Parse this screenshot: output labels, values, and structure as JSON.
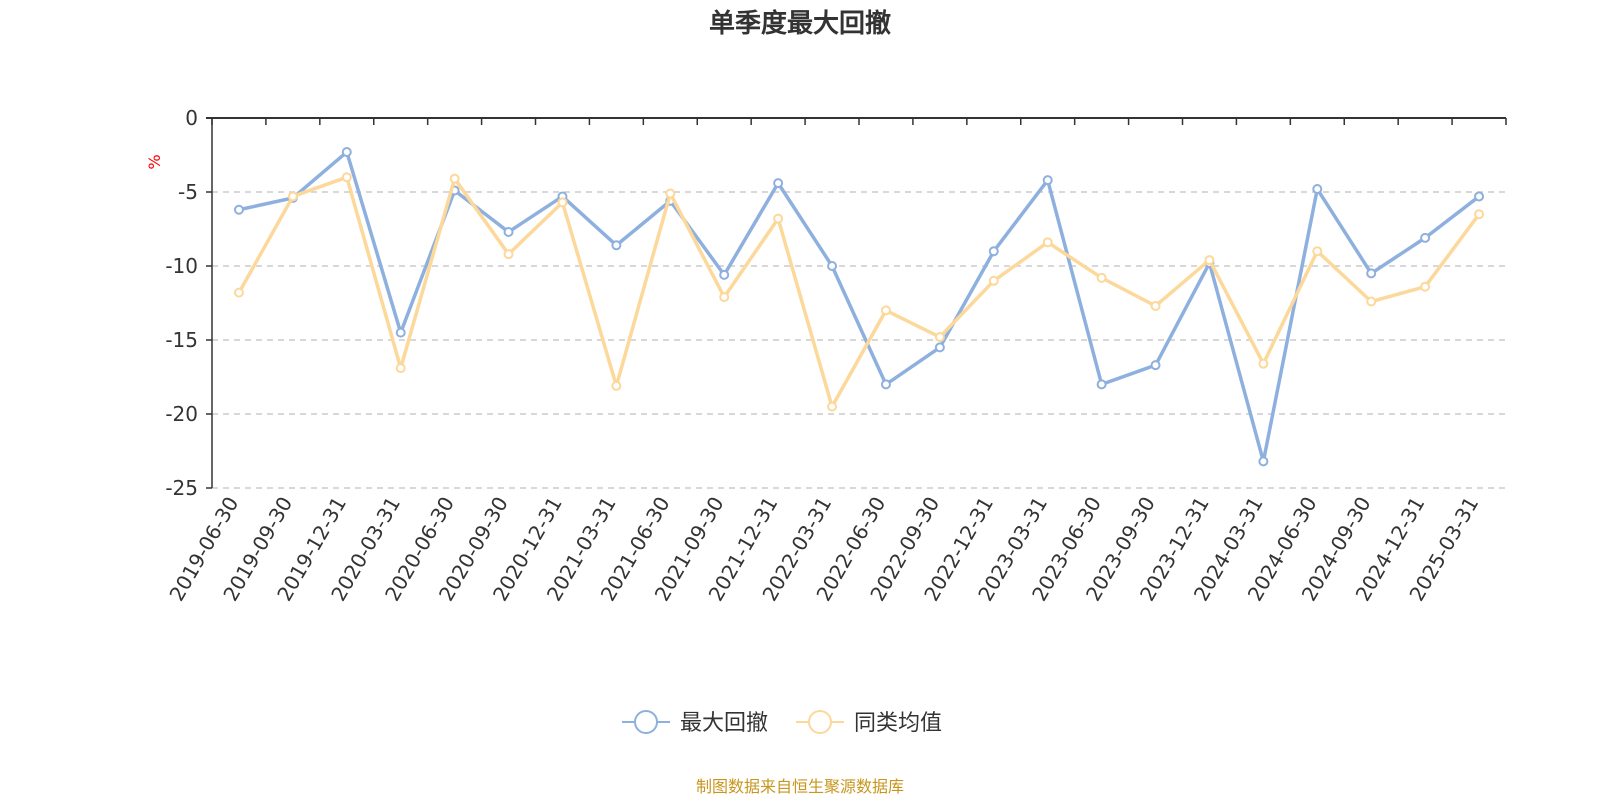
{
  "chart_data": {
    "type": "line",
    "title": "单季度最大回撤",
    "ylabel": "%",
    "ylim": [
      -25,
      0
    ],
    "yticks": [
      0,
      -5,
      -10,
      -15,
      -20,
      -25
    ],
    "grid": true,
    "legend_position": "bottom-center",
    "categories": [
      "2019-06-30",
      "2019-09-30",
      "2019-12-31",
      "2020-03-31",
      "2020-06-30",
      "2020-09-30",
      "2020-12-31",
      "2021-03-31",
      "2021-06-30",
      "2021-09-30",
      "2021-12-31",
      "2022-03-31",
      "2022-06-30",
      "2022-09-30",
      "2022-12-31",
      "2023-03-31",
      "2023-06-30",
      "2023-09-30",
      "2023-12-31",
      "2024-03-31",
      "2024-06-30",
      "2024-09-30",
      "2024-12-31",
      "2025-03-31"
    ],
    "series": [
      {
        "name": "最大回撤",
        "color": "#8eb0de",
        "values": [
          -6.2,
          -5.4,
          -2.3,
          -14.5,
          -4.9,
          -7.7,
          -5.3,
          -8.6,
          -5.6,
          -10.6,
          -4.4,
          -10.0,
          -18.0,
          -15.5,
          -9.0,
          -4.2,
          -18.0,
          -16.7,
          -9.8,
          -23.2,
          -4.8,
          -10.5,
          -8.1,
          -5.3
        ]
      },
      {
        "name": "同类均值",
        "color": "#fcd89a",
        "values": [
          -11.8,
          -5.3,
          -4.0,
          -16.9,
          -4.1,
          -9.2,
          -5.7,
          -18.1,
          -5.1,
          -12.1,
          -6.8,
          -19.5,
          -13.0,
          -14.8,
          -11.0,
          -8.4,
          -10.8,
          -12.7,
          -9.6,
          -16.6,
          -9.0,
          -12.4,
          -11.4,
          -6.5
        ]
      }
    ]
  },
  "footer": {
    "source": "制图数据来自恒生聚源数据库"
  }
}
